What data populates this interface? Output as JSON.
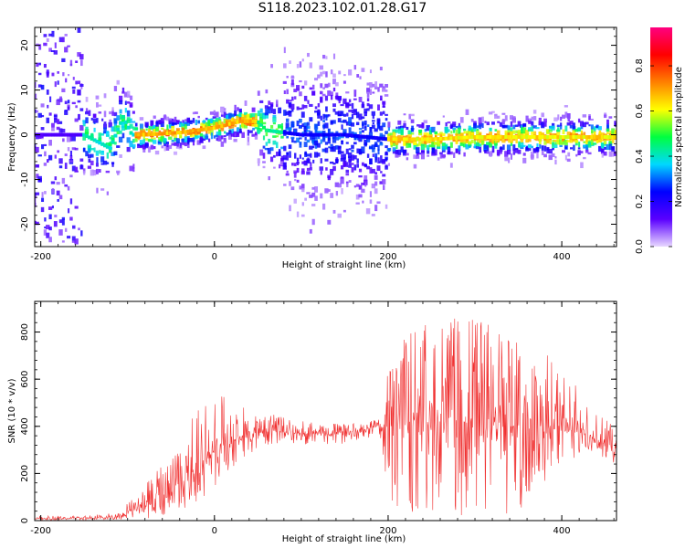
{
  "title": "S118.2023.102.01.28.G17",
  "chart_data": [
    {
      "type": "heatmap",
      "title": "S118.2023.102.01.28.G17",
      "xlabel": "Height of straight line (km)",
      "ylabel": "Frequency (Hz)",
      "xlim": [
        -207,
        463
      ],
      "ylim": [
        -25,
        24
      ],
      "x_ticks": [
        -200,
        0,
        200,
        400
      ],
      "y_ticks": [
        -20,
        -10,
        0,
        10,
        20
      ],
      "colorbar": {
        "label": "Normalized spectral amplitude",
        "range": [
          0,
          0.97
        ],
        "ticks": [
          0.0,
          0.2,
          0.4,
          0.6,
          0.8
        ],
        "colors": [
          "#e8d8ff",
          "#5a00ff",
          "#0000ff",
          "#00d8ff",
          "#00ff40",
          "#ffff00",
          "#ff8000",
          "#ff0000",
          "#ff0080"
        ]
      },
      "center_line": {
        "x": [
          -150,
          -120,
          -105,
          -95,
          -80,
          -40,
          0,
          30,
          50,
          60,
          100,
          150,
          200,
          250,
          300,
          350,
          400,
          463
        ],
        "y": [
          0,
          -3,
          4,
          0,
          0,
          0.5,
          1.5,
          3,
          3,
          1,
          0,
          0,
          -1,
          -1,
          -0.5,
          -0.5,
          -0.5,
          -0.5
        ]
      }
    },
    {
      "type": "line",
      "xlabel": "Height of straight line (km)",
      "ylabel": "SNR (10 * v/v)",
      "xlim": [
        -207,
        463
      ],
      "ylim": [
        0,
        930
      ],
      "x_ticks": [
        -200,
        0,
        200,
        400
      ],
      "y_ticks": [
        0,
        200,
        400,
        600,
        800
      ],
      "color": "#f03030",
      "envelope": {
        "x": [
          -207,
          -150,
          -110,
          -80,
          -60,
          -40,
          -20,
          0,
          20,
          40,
          60,
          80,
          100,
          130,
          160,
          190,
          200,
          210,
          230,
          260,
          290,
          320,
          350,
          380,
          400,
          420,
          440,
          463
        ],
        "mean": [
          8,
          10,
          15,
          60,
          110,
          160,
          220,
          290,
          340,
          370,
          380,
          375,
          370,
          365,
          380,
          400,
          410,
          420,
          420,
          420,
          420,
          410,
          400,
          390,
          380,
          370,
          340,
          310
        ],
        "upper": [
          20,
          20,
          40,
          150,
          250,
          380,
          470,
          530,
          530,
          470,
          460,
          440,
          430,
          410,
          420,
          430,
          650,
          780,
          840,
          860,
          870,
          840,
          780,
          720,
          640,
          560,
          470,
          400
        ],
        "lower": [
          0,
          2,
          5,
          5,
          20,
          40,
          60,
          120,
          180,
          280,
          320,
          320,
          320,
          320,
          330,
          350,
          60,
          30,
          20,
          20,
          20,
          20,
          30,
          100,
          180,
          260,
          280,
          240
        ]
      }
    }
  ]
}
